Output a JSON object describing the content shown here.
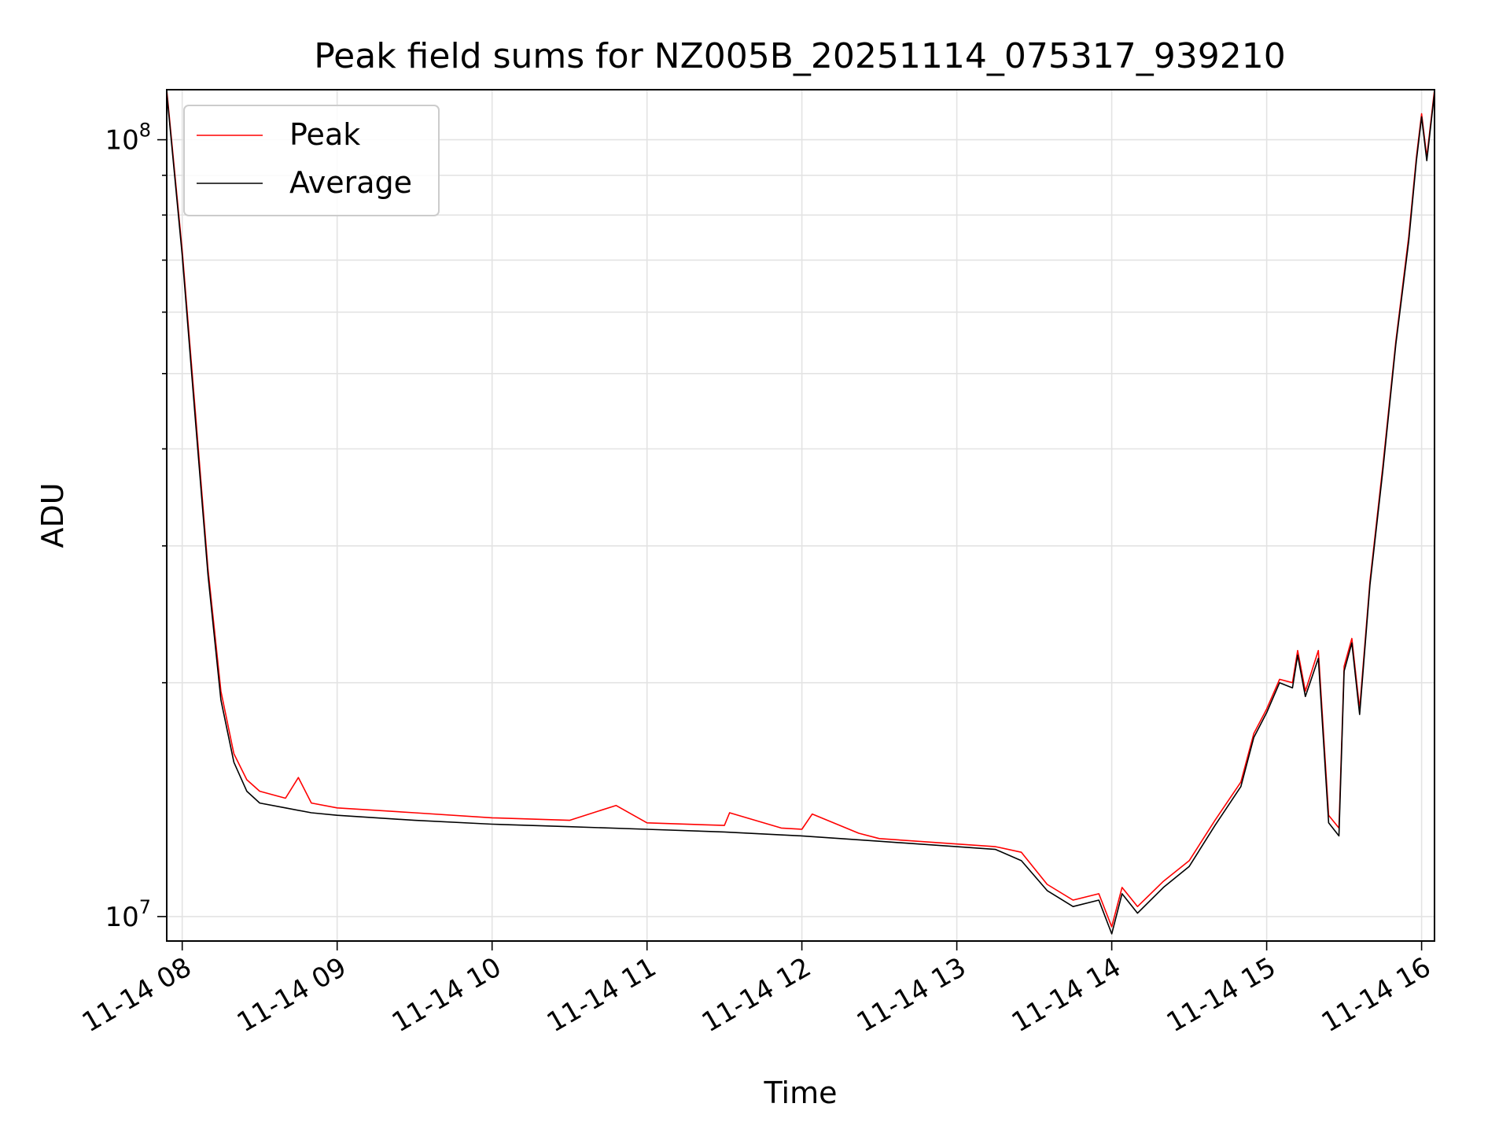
{
  "chart_data": {
    "type": "line",
    "title": "Peak field sums for NZ005B_20251114_075317_939210",
    "xlabel": "Time",
    "ylabel": "ADU",
    "y_scale": "log",
    "ylim": [
      9300000,
      116000000
    ],
    "xlim": [
      "2025-11-14T07:54",
      "2025-11-14T16:05"
    ],
    "grid": true,
    "legend_position": "upper-left",
    "x_ticks": [
      {
        "value": "2025-11-14T08:00",
        "label": "11-14 08"
      },
      {
        "value": "2025-11-14T09:00",
        "label": "11-14 09"
      },
      {
        "value": "2025-11-14T10:00",
        "label": "11-14 10"
      },
      {
        "value": "2025-11-14T11:00",
        "label": "11-14 11"
      },
      {
        "value": "2025-11-14T12:00",
        "label": "11-14 12"
      },
      {
        "value": "2025-11-14T13:00",
        "label": "11-14 13"
      },
      {
        "value": "2025-11-14T14:00",
        "label": "11-14 14"
      },
      {
        "value": "2025-11-14T15:00",
        "label": "11-14 15"
      },
      {
        "value": "2025-11-14T16:00",
        "label": "11-14 16"
      }
    ],
    "y_major_ticks": [
      {
        "value": 10000000,
        "base": "10",
        "exp": "7"
      },
      {
        "value": 100000000,
        "base": "10",
        "exp": "8"
      }
    ],
    "series": [
      {
        "name": "Peak",
        "color": "#ff0000",
        "x": [
          "2025-11-14T07:54",
          "2025-11-14T08:00",
          "2025-11-14T08:05",
          "2025-11-14T08:10",
          "2025-11-14T08:15",
          "2025-11-14T08:20",
          "2025-11-14T08:25",
          "2025-11-14T08:30",
          "2025-11-14T08:40",
          "2025-11-14T08:45",
          "2025-11-14T08:50",
          "2025-11-14T09:00",
          "2025-11-14T09:30",
          "2025-11-14T10:00",
          "2025-11-14T10:30",
          "2025-11-14T10:48",
          "2025-11-14T11:00",
          "2025-11-14T11:30",
          "2025-11-14T11:32",
          "2025-11-14T11:52",
          "2025-11-14T12:00",
          "2025-11-14T12:04",
          "2025-11-14T12:22",
          "2025-11-14T12:30",
          "2025-11-14T13:00",
          "2025-11-14T13:15",
          "2025-11-14T13:25",
          "2025-11-14T13:35",
          "2025-11-14T13:45",
          "2025-11-14T13:55",
          "2025-11-14T14:00",
          "2025-11-14T14:04",
          "2025-11-14T14:10",
          "2025-11-14T14:20",
          "2025-11-14T14:30",
          "2025-11-14T14:40",
          "2025-11-14T14:50",
          "2025-11-14T14:55",
          "2025-11-14T15:00",
          "2025-11-14T15:05",
          "2025-11-14T15:10",
          "2025-11-14T15:12",
          "2025-11-14T15:15",
          "2025-11-14T15:20",
          "2025-11-14T15:24",
          "2025-11-14T15:28",
          "2025-11-14T15:30",
          "2025-11-14T15:33",
          "2025-11-14T15:36",
          "2025-11-14T15:40",
          "2025-11-14T15:45",
          "2025-11-14T15:50",
          "2025-11-14T15:55",
          "2025-11-14T15:58",
          "2025-11-14T16:00",
          "2025-11-14T16:02",
          "2025-11-14T16:05"
        ],
        "y": [
          116000000,
          72000000,
          45000000,
          28000000,
          19500000,
          16200000,
          15000000,
          14500000,
          14200000,
          15100000,
          14000000,
          13800000,
          13600000,
          13400000,
          13300000,
          13900000,
          13200000,
          13100000,
          13600000,
          13000000,
          12950000,
          13550000,
          12800000,
          12600000,
          12400000,
          12300000,
          12100000,
          11000000,
          10500000,
          10700000,
          9700000,
          10900000,
          10300000,
          11100000,
          11800000,
          13300000,
          14900000,
          17200000,
          18500000,
          20200000,
          20000000,
          22000000,
          19500000,
          22000000,
          13500000,
          13000000,
          21000000,
          22800000,
          18500000,
          27000000,
          38000000,
          55000000,
          75000000,
          95000000,
          108000000,
          95000000,
          116000000
        ]
      },
      {
        "name": "Average",
        "color": "#000000",
        "x": [
          "2025-11-14T07:54",
          "2025-11-14T08:00",
          "2025-11-14T08:05",
          "2025-11-14T08:10",
          "2025-11-14T08:15",
          "2025-11-14T08:20",
          "2025-11-14T08:25",
          "2025-11-14T08:30",
          "2025-11-14T08:40",
          "2025-11-14T08:50",
          "2025-11-14T09:00",
          "2025-11-14T09:30",
          "2025-11-14T10:00",
          "2025-11-14T10:30",
          "2025-11-14T11:00",
          "2025-11-14T11:30",
          "2025-11-14T12:00",
          "2025-11-14T12:30",
          "2025-11-14T13:00",
          "2025-11-14T13:15",
          "2025-11-14T13:25",
          "2025-11-14T13:35",
          "2025-11-14T13:45",
          "2025-11-14T13:55",
          "2025-11-14T14:00",
          "2025-11-14T14:04",
          "2025-11-14T14:10",
          "2025-11-14T14:20",
          "2025-11-14T14:30",
          "2025-11-14T14:40",
          "2025-11-14T14:50",
          "2025-11-14T14:55",
          "2025-11-14T15:00",
          "2025-11-14T15:05",
          "2025-11-14T15:10",
          "2025-11-14T15:12",
          "2025-11-14T15:15",
          "2025-11-14T15:20",
          "2025-11-14T15:24",
          "2025-11-14T15:28",
          "2025-11-14T15:30",
          "2025-11-14T15:33",
          "2025-11-14T15:36",
          "2025-11-14T15:40",
          "2025-11-14T15:45",
          "2025-11-14T15:50",
          "2025-11-14T15:55",
          "2025-11-14T15:58",
          "2025-11-14T16:00",
          "2025-11-14T16:02",
          "2025-11-14T16:05"
        ],
        "y": [
          115000000,
          71000000,
          44000000,
          27500000,
          19000000,
          15800000,
          14500000,
          14000000,
          13800000,
          13600000,
          13500000,
          13300000,
          13150000,
          13050000,
          12950000,
          12850000,
          12700000,
          12500000,
          12300000,
          12200000,
          11800000,
          10800000,
          10300000,
          10500000,
          9500000,
          10700000,
          10100000,
          10900000,
          11600000,
          13100000,
          14700000,
          17000000,
          18300000,
          20000000,
          19700000,
          21700000,
          19200000,
          21500000,
          13200000,
          12700000,
          20700000,
          22500000,
          18200000,
          26700000,
          37500000,
          54500000,
          74000000,
          94000000,
          107000000,
          94000000,
          115000000
        ]
      }
    ]
  }
}
